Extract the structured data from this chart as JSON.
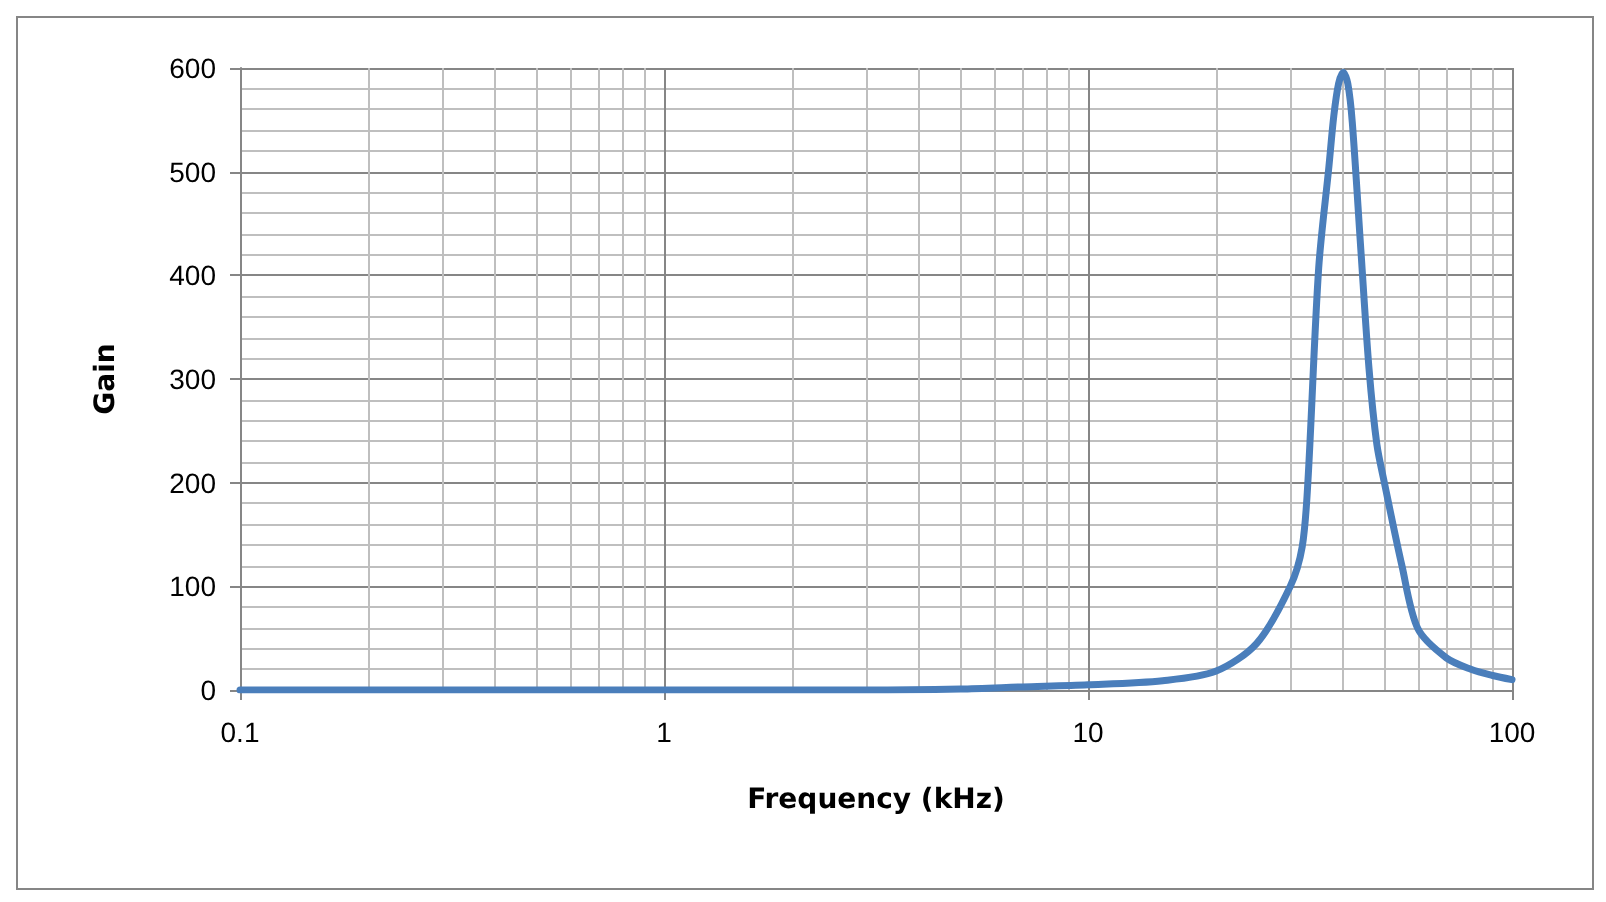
{
  "chart_data": {
    "type": "line",
    "xlabel": "Frequency (kHz)",
    "ylabel": "Gain",
    "log": "x",
    "xlim": [
      0.1,
      100
    ],
    "xticks": [
      0.1,
      1,
      10,
      100
    ],
    "ylim": [
      0,
      600
    ],
    "yticks": [
      0,
      100,
      200,
      300,
      400,
      500,
      600
    ],
    "grid": true,
    "marker": "none",
    "line_style": "solid",
    "series": [
      {
        "color": "#4a7ebb",
        "x": [
          0.1,
          0.5,
          1,
          2,
          3,
          5,
          7,
          10,
          15,
          20,
          25,
          30,
          32,
          33,
          35,
          37,
          38,
          39,
          40,
          41,
          42,
          44,
          46,
          48,
          50,
          55,
          60,
          70,
          80,
          90,
          100
        ],
        "values": [
          0,
          0,
          0,
          0,
          0,
          1,
          3,
          5,
          9,
          18,
          45,
          100,
          138,
          200,
          407,
          505,
          554,
          585,
          596,
          585,
          548,
          425,
          310,
          237,
          200,
          120,
          59,
          31,
          20,
          14,
          10
        ]
      }
    ]
  }
}
